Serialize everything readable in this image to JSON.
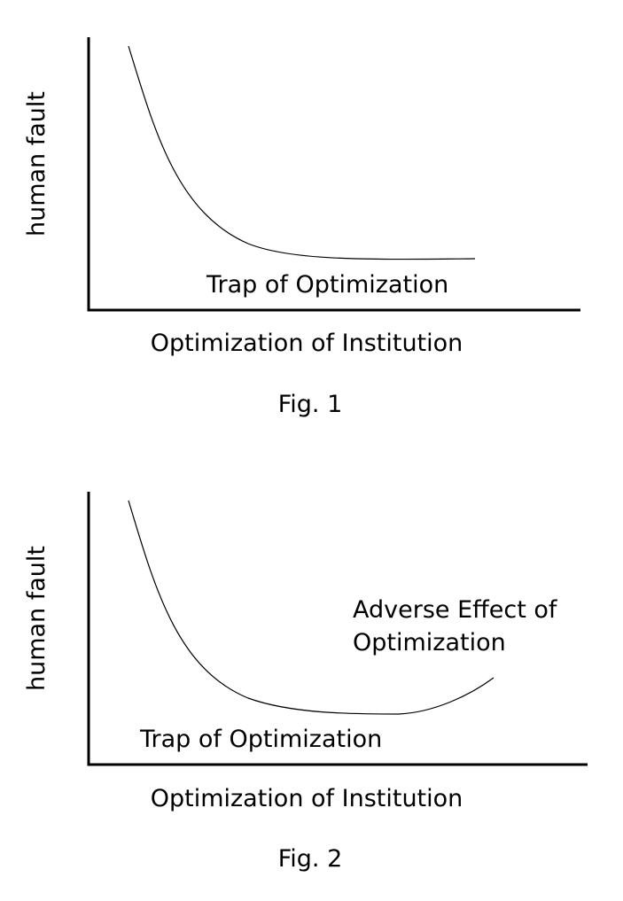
{
  "figures": [
    {
      "y_label": "human fault",
      "x_label": "Optimization of Institution",
      "annotations": [
        "Trap of Optimization"
      ],
      "caption": "Fig. 1"
    },
    {
      "y_label": "human fault",
      "x_label": "Optimization of Institution",
      "annotations": [
        "Adverse Effect of",
        "Optimization",
        "Trap of Optimization"
      ],
      "caption": "Fig. 2"
    }
  ]
}
